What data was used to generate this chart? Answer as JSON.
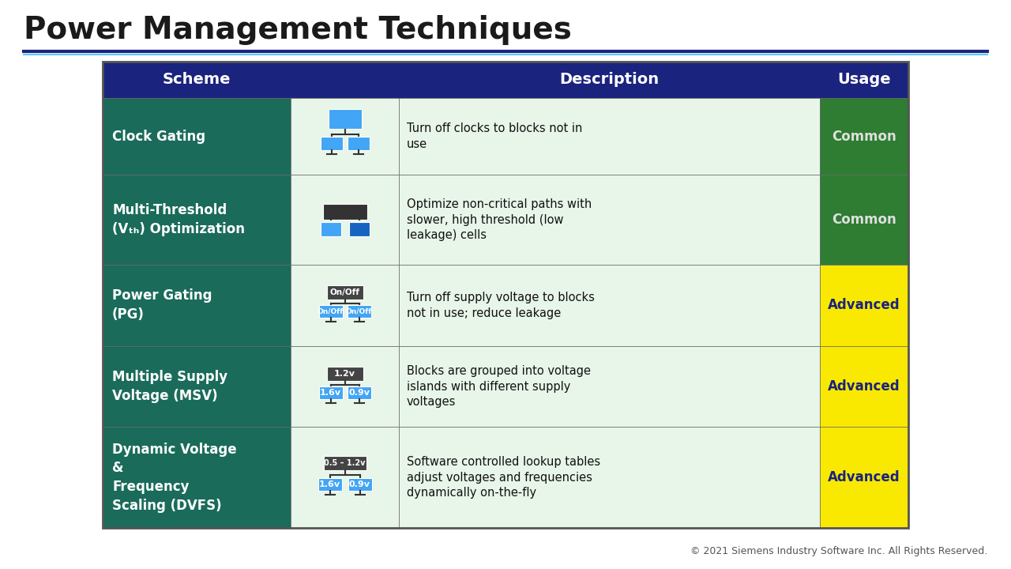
{
  "title": "Power Management Techniques",
  "title_color": "#1a1a1a",
  "title_fontsize": 28,
  "background_color": "#ffffff",
  "header_bg": "#1a237e",
  "row_bg_scheme": "#1a6b5a",
  "row_bg_desc_light": "#e8f5e9",
  "usage_common_color": "#2e7d32",
  "usage_advanced_color": "#f9e900",
  "usage_text_common": "#e0e0e0",
  "usage_text_advanced": "#1a237e",
  "footer_text": "© 2021 Siemens Industry Software Inc. All Rights Reserved.",
  "rows": [
    {
      "scheme": "Clock Gating",
      "description": "Turn off clocks to blocks not in\nuse",
      "usage": "Common",
      "usage_type": "common"
    },
    {
      "scheme": "Multi-Threshold\n(Vₜₕ) Optimization",
      "description": "Optimize non-critical paths with\nslower, high threshold (low\nleakage) cells",
      "usage": "Common",
      "usage_type": "common"
    },
    {
      "scheme": "Power Gating\n(PG)",
      "description": "Turn off supply voltage to blocks\nnot in use; reduce leakage",
      "usage": "Advanced",
      "usage_type": "advanced"
    },
    {
      "scheme": "Multiple Supply\nVoltage (MSV)",
      "description": "Blocks are grouped into voltage\nislands with different supply\nvoltages",
      "usage": "Advanced",
      "usage_type": "advanced"
    },
    {
      "scheme": "Dynamic Voltage\n&\nFrequency\nScaling (DVFS)",
      "description": "Software controlled lookup tables\nadjust voltages and frequencies\ndynamically on-the-fly",
      "usage": "Advanced",
      "usage_type": "advanced"
    }
  ]
}
